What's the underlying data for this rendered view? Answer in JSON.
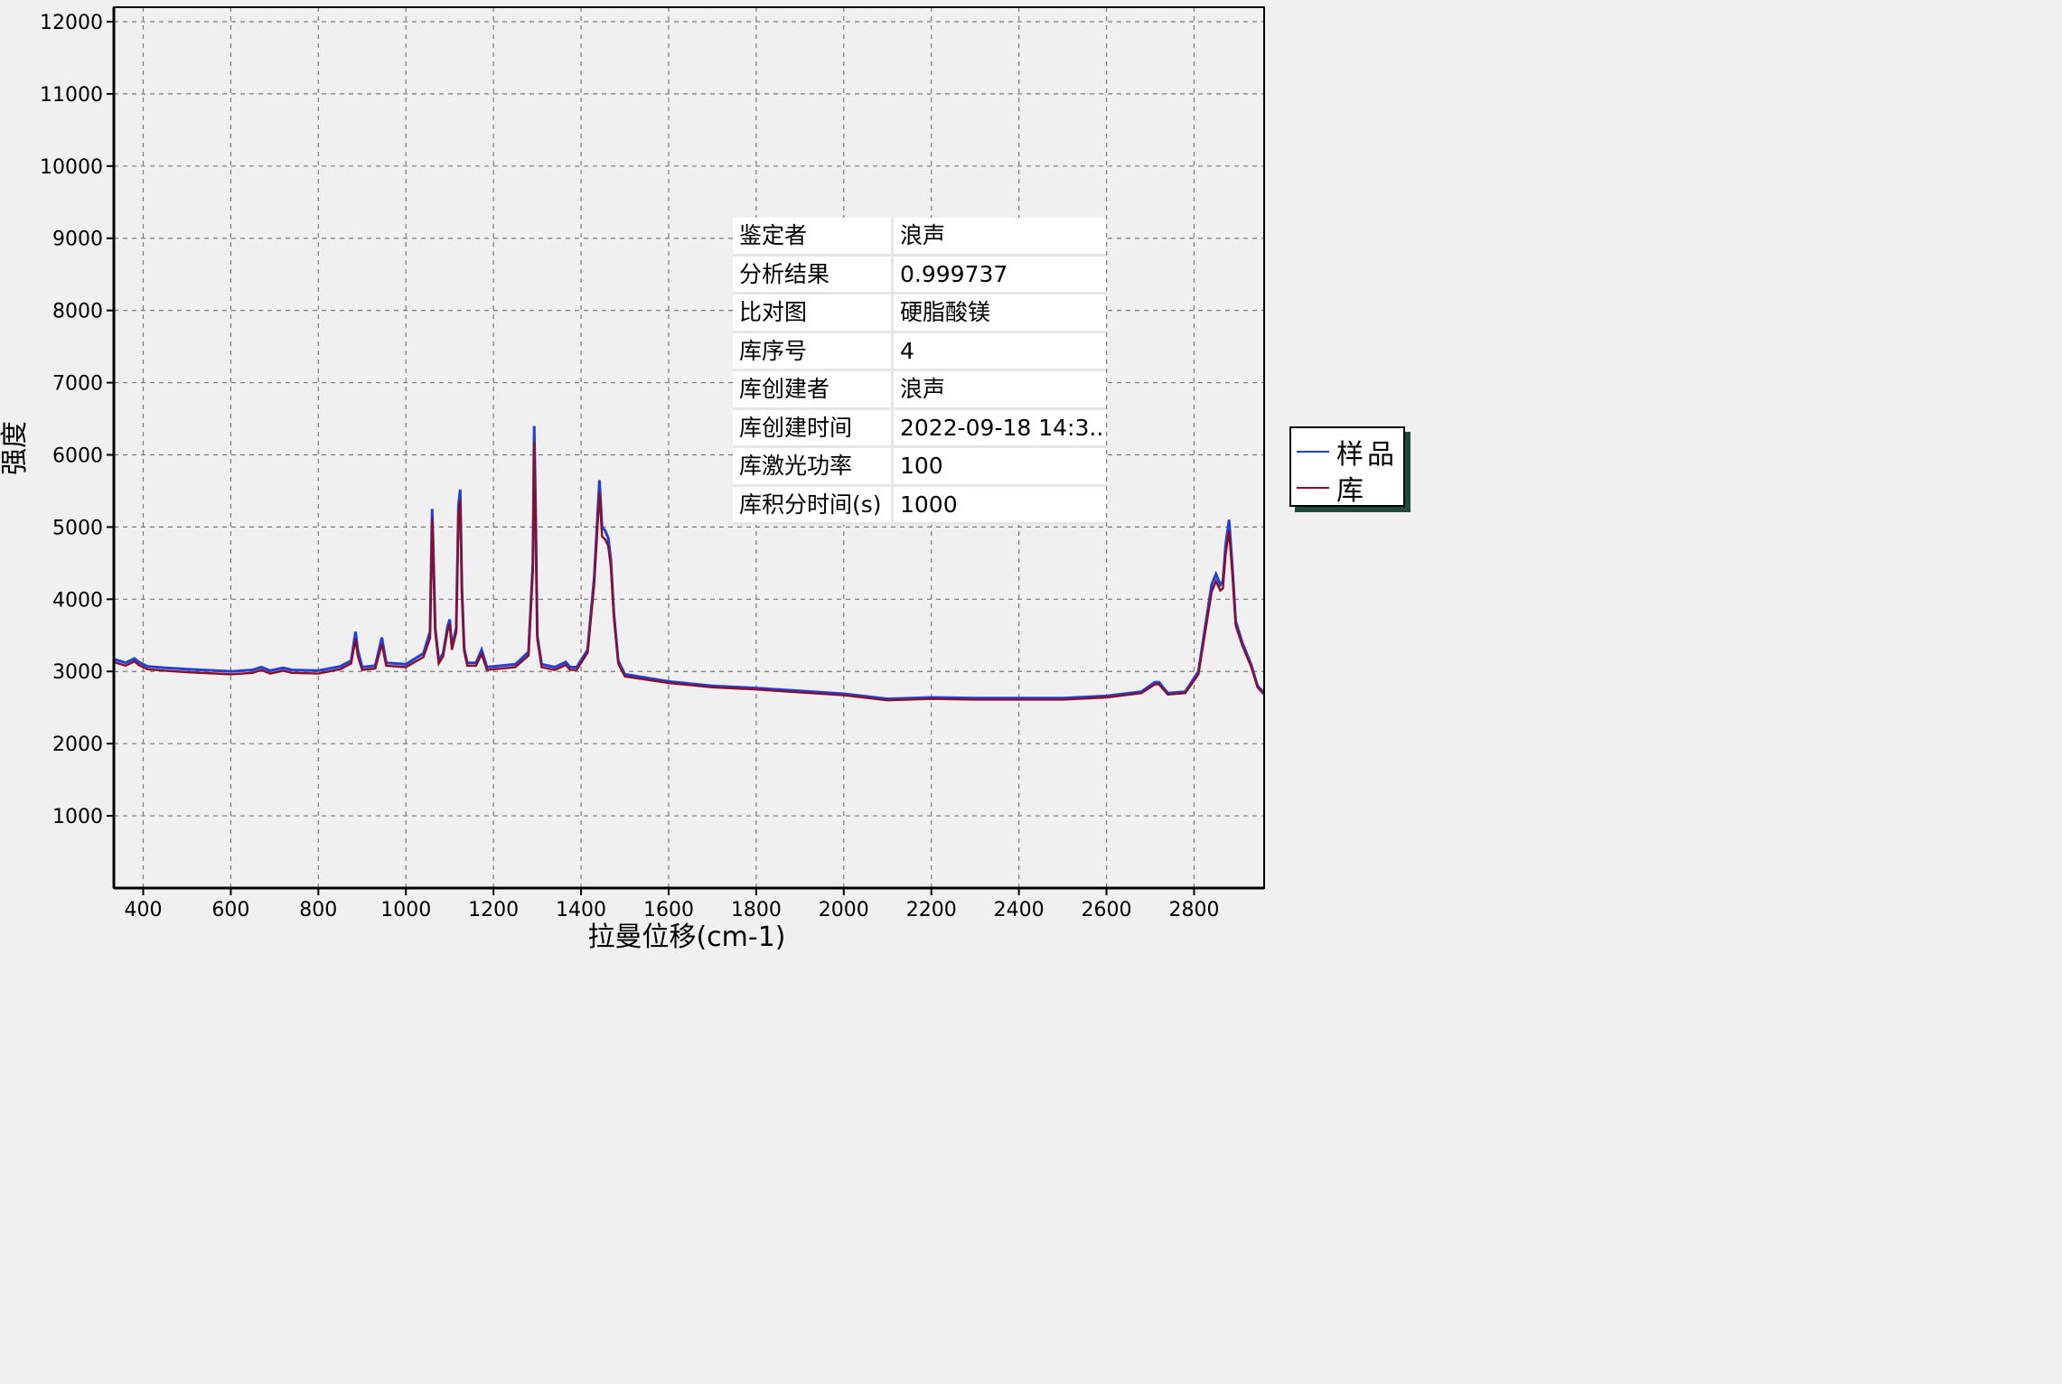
{
  "chart_data": {
    "type": "line",
    "xlabel": "拉曼位移(cm-1)",
    "ylabel": "强度",
    "xlim": [
      333,
      2960
    ],
    "ylim": [
      0,
      12200
    ],
    "xticks": [
      400,
      600,
      800,
      1000,
      1200,
      1400,
      1600,
      1800,
      2000,
      2200,
      2400,
      2600,
      2800
    ],
    "xtick_labels": [
      "400",
      "600",
      "800",
      "1000",
      "1200",
      "1400",
      "1600",
      "1800",
      "2000",
      "2200",
      "2400",
      "2600",
      "2800"
    ],
    "yticks": [
      1000,
      2000,
      3000,
      4000,
      5000,
      6000,
      7000,
      8000,
      9000,
      10000,
      11000,
      12000
    ],
    "ytick_labels": [
      "1000",
      "2000",
      "3000",
      "4000",
      "5000",
      "6000",
      "7000",
      "8000",
      "9000",
      "10000",
      "11000",
      "12000"
    ],
    "grid": true,
    "legend_position": "right",
    "series": [
      {
        "name": "样品",
        "color": "#1f3fe0",
        "x": [
          333,
          360,
          380,
          390,
          410,
          450,
          500,
          600,
          650,
          670,
          690,
          720,
          740,
          800,
          850,
          875,
          885,
          890,
          900,
          930,
          945,
          955,
          1000,
          1040,
          1055,
          1060,
          1063,
          1067,
          1075,
          1085,
          1095,
          1100,
          1105,
          1115,
          1120,
          1124,
          1128,
          1133,
          1140,
          1160,
          1173,
          1185,
          1250,
          1280,
          1290,
          1293,
          1296,
          1300,
          1310,
          1340,
          1365,
          1375,
          1390,
          1415,
          1430,
          1438,
          1442,
          1448,
          1455,
          1462,
          1468,
          1475,
          1485,
          1500,
          1600,
          1700,
          1800,
          1900,
          2000,
          2100,
          2200,
          2300,
          2400,
          2500,
          2600,
          2680,
          2710,
          2720,
          2740,
          2780,
          2810,
          2840,
          2850,
          2860,
          2866,
          2872,
          2880,
          2888,
          2895,
          2910,
          2930,
          2945,
          2960
        ],
        "y": [
          3170,
          3120,
          3180,
          3130,
          3070,
          3050,
          3030,
          3000,
          3020,
          3060,
          3010,
          3050,
          3020,
          3010,
          3070,
          3150,
          3550,
          3300,
          3060,
          3080,
          3470,
          3120,
          3100,
          3250,
          3550,
          5250,
          4600,
          3600,
          3150,
          3250,
          3620,
          3720,
          3350,
          3600,
          5300,
          5520,
          4150,
          3320,
          3120,
          3120,
          3300,
          3060,
          3100,
          3270,
          4500,
          6400,
          5300,
          3500,
          3100,
          3060,
          3130,
          3060,
          3060,
          3300,
          4300,
          5200,
          5650,
          5000,
          4950,
          4850,
          4550,
          3800,
          3150,
          2960,
          2860,
          2800,
          2770,
          2730,
          2690,
          2620,
          2640,
          2630,
          2630,
          2630,
          2660,
          2720,
          2850,
          2850,
          2700,
          2720,
          3000,
          4200,
          4350,
          4200,
          4250,
          4750,
          5100,
          4400,
          3700,
          3400,
          3100,
          2800,
          2700
        ]
      },
      {
        "name": "库",
        "color": "#8b0e25",
        "x": [
          333,
          360,
          380,
          390,
          410,
          450,
          500,
          600,
          650,
          670,
          690,
          720,
          740,
          800,
          850,
          875,
          885,
          890,
          900,
          930,
          945,
          955,
          1000,
          1040,
          1055,
          1060,
          1063,
          1067,
          1075,
          1085,
          1095,
          1100,
          1105,
          1115,
          1120,
          1124,
          1128,
          1133,
          1140,
          1160,
          1173,
          1185,
          1250,
          1280,
          1290,
          1293,
          1296,
          1300,
          1310,
          1340,
          1365,
          1375,
          1390,
          1415,
          1430,
          1438,
          1442,
          1448,
          1455,
          1462,
          1468,
          1475,
          1485,
          1500,
          1600,
          1700,
          1800,
          1900,
          2000,
          2100,
          2200,
          2300,
          2400,
          2500,
          2600,
          2680,
          2710,
          2720,
          2740,
          2780,
          2810,
          2840,
          2850,
          2860,
          2866,
          2872,
          2880,
          2888,
          2895,
          2910,
          2930,
          2945,
          2960
        ],
        "y": [
          3130,
          3080,
          3140,
          3090,
          3030,
          3010,
          2990,
          2960,
          2980,
          3020,
          2970,
          3010,
          2980,
          2970,
          3030,
          3110,
          3450,
          3220,
          3020,
          3040,
          3380,
          3080,
          3060,
          3200,
          3460,
          5120,
          4450,
          3540,
          3110,
          3210,
          3560,
          3660,
          3300,
          3540,
          5150,
          5380,
          4050,
          3280,
          3080,
          3080,
          3240,
          3020,
          3060,
          3220,
          4380,
          6180,
          5150,
          3450,
          3060,
          3020,
          3090,
          3020,
          3020,
          3260,
          4200,
          5050,
          5480,
          4870,
          4830,
          4740,
          4450,
          3740,
          3110,
          2930,
          2840,
          2780,
          2750,
          2710,
          2670,
          2600,
          2620,
          2610,
          2610,
          2610,
          2640,
          2700,
          2820,
          2820,
          2680,
          2700,
          2960,
          4100,
          4250,
          4120,
          4150,
          4620,
          4950,
          4300,
          3640,
          3360,
          3070,
          2780,
          2680
        ]
      }
    ]
  },
  "info_table": [
    {
      "key": "鉴定者",
      "value": "浪声"
    },
    {
      "key": "分析结果",
      "value": "0.999737"
    },
    {
      "key": "比对图",
      "value": "硬脂酸镁"
    },
    {
      "key": "库序号",
      "value": "4"
    },
    {
      "key": "库创建者",
      "value": "浪声"
    },
    {
      "key": "库创建时间",
      "value": "2022-09-18 14:3.."
    },
    {
      "key": "库激光功率",
      "value": "100"
    },
    {
      "key": "库积分时间(s)",
      "value": "1000"
    }
  ],
  "legend": [
    {
      "label": "样品",
      "color": "#1f3fe0"
    },
    {
      "label": "库",
      "color": "#8b0e25"
    }
  ]
}
